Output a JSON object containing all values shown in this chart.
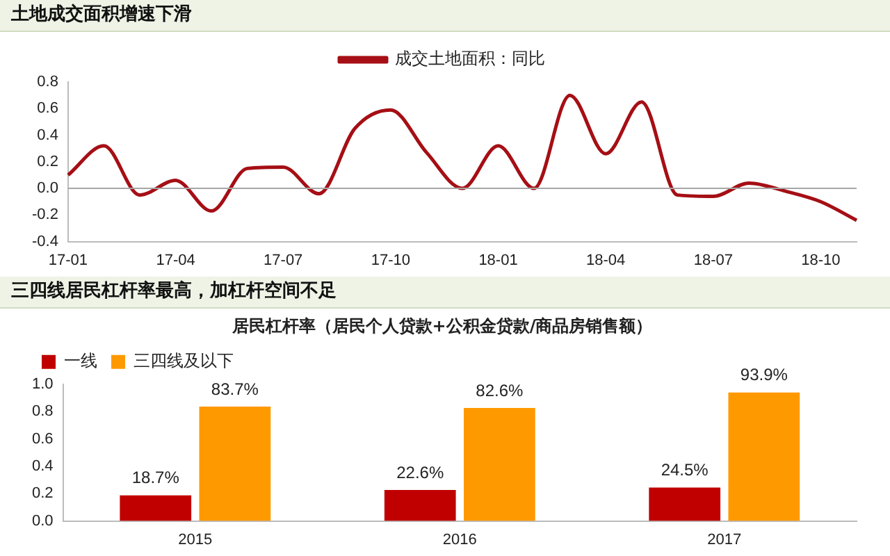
{
  "chart_data": [
    {
      "type": "line",
      "title": "土地成交面积增速下滑",
      "categories": [
        "17-01",
        null,
        null,
        "17-04",
        null,
        null,
        "17-07",
        null,
        null,
        "17-10",
        null,
        null,
        "18-01",
        null,
        null,
        "18-04",
        null,
        null,
        "18-07",
        null,
        null,
        "18-10",
        null
      ],
      "series": [
        {
          "name": "成交土地面积：同比",
          "color": "#a50f15",
          "values": [
            0.1,
            0.32,
            -0.05,
            0.06,
            -0.17,
            0.15,
            0.16,
            -0.04,
            0.45,
            0.59,
            0.27,
            0.0,
            0.32,
            0.0,
            0.7,
            0.26,
            0.65,
            -0.05,
            -0.06,
            0.04,
            -0.02,
            -0.1,
            -0.24
          ]
        }
      ],
      "ylim": [
        -0.4,
        0.8
      ],
      "yticks": [
        {
          "value": -0.4,
          "label": "-0.4"
        },
        {
          "value": -0.2,
          "label": "-0.2"
        },
        {
          "value": 0,
          "label": "0.0"
        },
        {
          "value": 0.2,
          "label": "0.2"
        },
        {
          "value": 0.4,
          "label": "0.4"
        },
        {
          "value": 0.6,
          "label": "0.6"
        },
        {
          "value": 0.8,
          "label": "0.8"
        }
      ],
      "ref_lines": [
        {
          "axis": "y",
          "value": 0,
          "color": "#a6a6a6"
        }
      ],
      "legend": "top",
      "grid": false,
      "marker": "none"
    },
    {
      "type": "bar",
      "title": "三四线居民杠杆率最高，加杠杆空间不足",
      "subtitle": "居民杠杆率（居民个人贷款+公积金贷款/商品房销售额）",
      "categories": [
        "2015",
        "2016",
        "2017"
      ],
      "series": [
        {
          "name": "一线",
          "color": "#c00000",
          "values": [
            0.187,
            0.226,
            0.245
          ],
          "value_labels": [
            "18.7%",
            "22.6%",
            "24.5%"
          ]
        },
        {
          "name": "三四线及以下",
          "color": "#ff9900",
          "values": [
            0.837,
            0.826,
            0.939
          ],
          "value_labels": [
            "83.7%",
            "82.6%",
            "93.9%"
          ]
        }
      ],
      "ylim": [
        0,
        1.0
      ],
      "yticks": [
        {
          "value": 0,
          "label": "0.0"
        },
        {
          "value": 0.2,
          "label": "0.2"
        },
        {
          "value": 0.4,
          "label": "0.4"
        },
        {
          "value": 0.6,
          "label": "0.6"
        },
        {
          "value": 0.8,
          "label": "0.8"
        },
        {
          "value": 1.0,
          "label": "1.0"
        }
      ],
      "legend": "top left",
      "grid": false
    }
  ]
}
